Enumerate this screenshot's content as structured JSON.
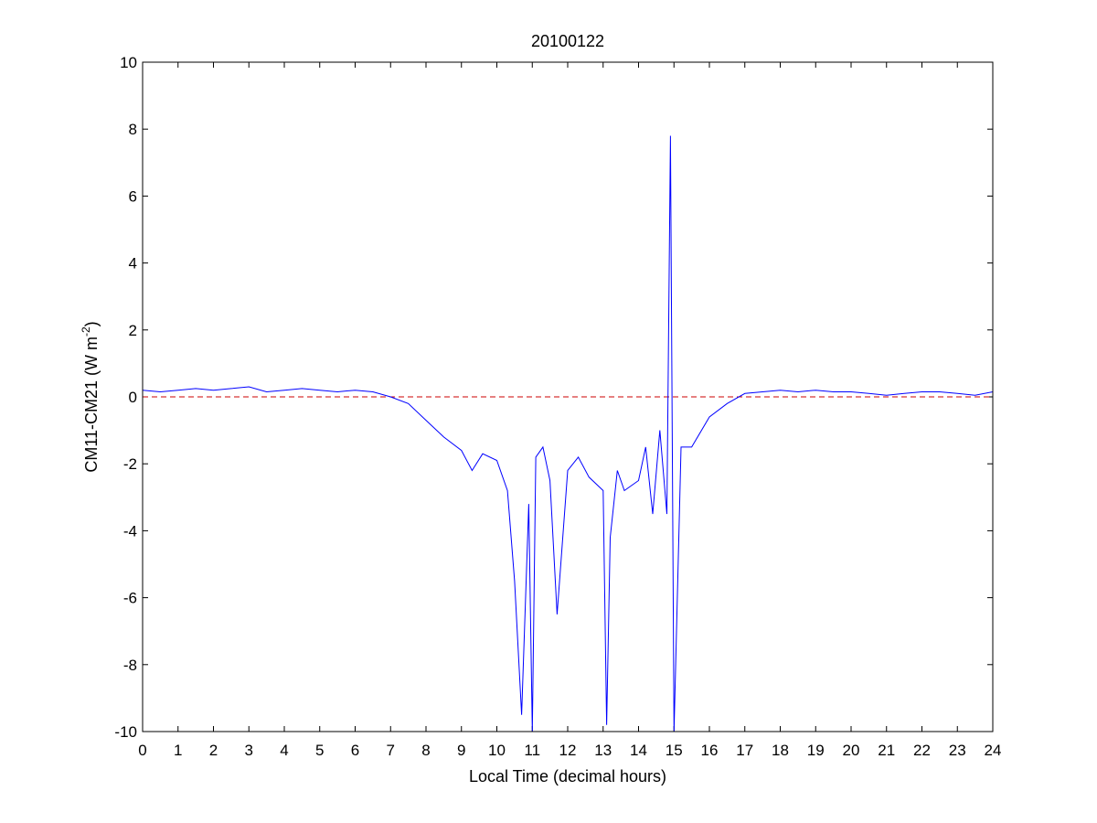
{
  "chart_data": {
    "type": "line",
    "title": "20100122",
    "xlabel": "Local Time (decimal hours)",
    "ylabel_main": "CM11-CM21 (W m",
    "ylabel_sup": "-2",
    "ylabel_close": ")",
    "xlim": [
      0,
      24
    ],
    "ylim": [
      -10,
      10
    ],
    "xticks": [
      0,
      1,
      2,
      3,
      4,
      5,
      6,
      7,
      8,
      9,
      10,
      11,
      12,
      13,
      14,
      15,
      16,
      17,
      18,
      19,
      20,
      21,
      22,
      23,
      24
    ],
    "yticks": [
      -10,
      -8,
      -6,
      -4,
      -2,
      0,
      2,
      4,
      6,
      8,
      10
    ],
    "grid": false,
    "reference_line": {
      "y": 0,
      "style": "dashed",
      "color": "#cc0000"
    },
    "series": [
      {
        "color": "#0000ff",
        "x": [
          0,
          0.5,
          1,
          1.5,
          2,
          2.5,
          3,
          3.5,
          4,
          4.5,
          5,
          5.5,
          6,
          6.5,
          7,
          7.5,
          8,
          8.5,
          9,
          9.3,
          9.6,
          10,
          10.3,
          10.5,
          10.7,
          10.9,
          11,
          11.1,
          11.3,
          11.5,
          11.7,
          12,
          12.3,
          12.6,
          13,
          13.1,
          13.2,
          13.4,
          13.6,
          14,
          14.2,
          14.4,
          14.6,
          14.8,
          14.9,
          15,
          15.2,
          15.5,
          16,
          16.5,
          17,
          17.5,
          18,
          18.5,
          19,
          19.5,
          20,
          20.5,
          21,
          21.5,
          22,
          22.5,
          23,
          23.5,
          24
        ],
        "y": [
          0.2,
          0.15,
          0.2,
          0.25,
          0.2,
          0.25,
          0.3,
          0.15,
          0.2,
          0.25,
          0.2,
          0.15,
          0.2,
          0.15,
          0,
          -0.2,
          -0.7,
          -1.2,
          -1.6,
          -2.2,
          -1.7,
          -1.9,
          -2.8,
          -5.5,
          -9.5,
          -3.2,
          -10,
          -1.8,
          -1.5,
          -2.5,
          -6.5,
          -2.2,
          -1.8,
          -2.4,
          -2.8,
          -9.8,
          -4.2,
          -2.2,
          -2.8,
          -2.5,
          -1.5,
          -3.5,
          -1.0,
          -3.5,
          7.8,
          -10,
          -1.5,
          -1.5,
          -0.6,
          -0.2,
          0.1,
          0.15,
          0.2,
          0.15,
          0.2,
          0.15,
          0.15,
          0.1,
          0.05,
          0.1,
          0.15,
          0.15,
          0.1,
          0.05,
          0.15
        ]
      }
    ]
  }
}
